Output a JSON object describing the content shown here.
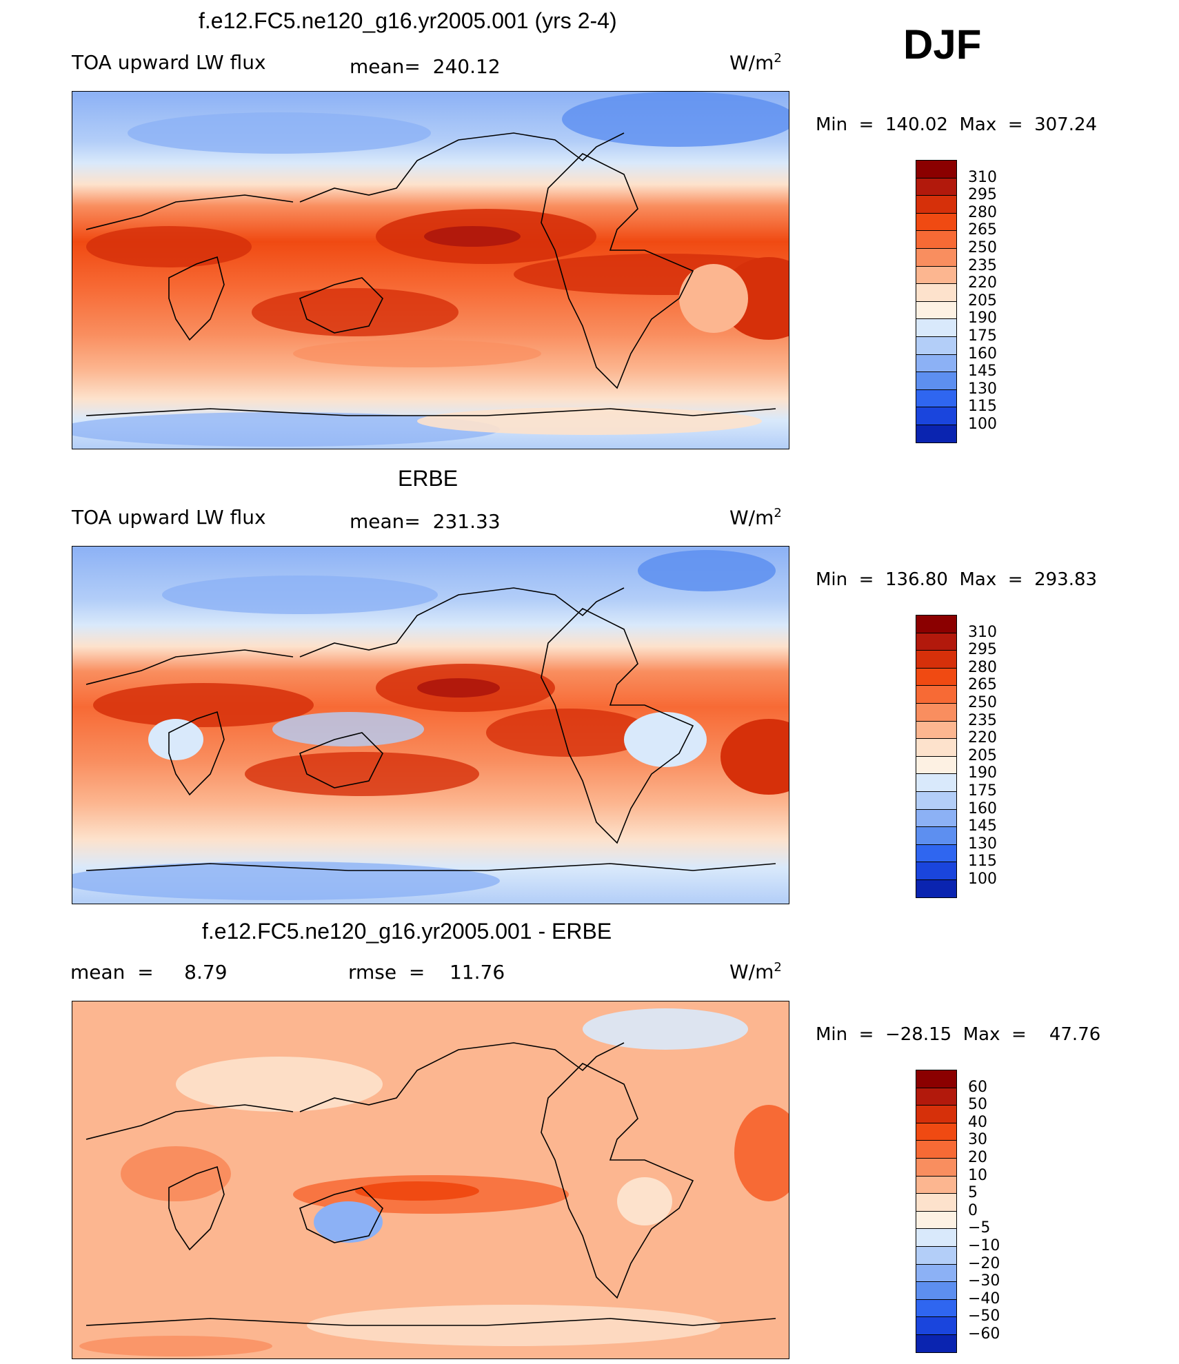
{
  "header": {
    "season": "DJF"
  },
  "chart_data": [
    {
      "type": "heatmap",
      "title": "f.e12.FC5.ne120_g16.yr2005.001 (yrs 2-4)",
      "variable": "TOA upward LW flux",
      "mean_label": "mean=  240.12",
      "units_label": "W/m",
      "units_exp": "2",
      "minmax_label": "Min  =  140.02  Max  =  307.24",
      "min": 140.02,
      "max": 307.24,
      "colorbar_levels": [
        "310",
        "295",
        "280",
        "265",
        "250",
        "235",
        "220",
        "205",
        "190",
        "175",
        "160",
        "145",
        "130",
        "115",
        "100"
      ],
      "colorbar_colors": [
        "#8b0000",
        "#b2190c",
        "#d6300a",
        "#f04a12",
        "#f76a35",
        "#f98e5f",
        "#fcb690",
        "#fde2cc",
        "#fdf1e3",
        "#d9e9fb",
        "#b3cef8",
        "#8cb1f5",
        "#5d8ff0",
        "#2f66f0",
        "#1a45dd",
        "#0a24b0"
      ]
    },
    {
      "type": "heatmap",
      "title": "ERBE",
      "variable": "TOA upward LW flux",
      "mean_label": "mean=  231.33",
      "units_label": "W/m",
      "units_exp": "2",
      "minmax_label": "Min  =  136.80  Max  =  293.83",
      "min": 136.8,
      "max": 293.83,
      "colorbar_levels": [
        "310",
        "295",
        "280",
        "265",
        "250",
        "235",
        "220",
        "205",
        "190",
        "175",
        "160",
        "145",
        "130",
        "115",
        "100"
      ],
      "colorbar_colors": [
        "#8b0000",
        "#b2190c",
        "#d6300a",
        "#f04a12",
        "#f76a35",
        "#f98e5f",
        "#fcb690",
        "#fde2cc",
        "#fdf1e3",
        "#d9e9fb",
        "#b3cef8",
        "#8cb1f5",
        "#5d8ff0",
        "#2f66f0",
        "#1a45dd",
        "#0a24b0"
      ]
    },
    {
      "type": "heatmap",
      "title": "f.e12.FC5.ne120_g16.yr2005.001 - ERBE",
      "mean_label": "mean  =     8.79",
      "rmse_label": "rmse  =    11.76",
      "units_label": "W/m",
      "units_exp": "2",
      "minmax_label": "Min  =  −28.15  Max  =    47.76",
      "min": -28.15,
      "max": 47.76,
      "colorbar_levels": [
        "60",
        "50",
        "40",
        "30",
        "20",
        "10",
        "5",
        "0",
        "−5",
        "−10",
        "−20",
        "−30",
        "−40",
        "−50",
        "−60"
      ],
      "colorbar_colors": [
        "#8b0000",
        "#b2190c",
        "#d6300a",
        "#f04a12",
        "#f76a35",
        "#f98e5f",
        "#fcb690",
        "#fde2cc",
        "#fdf1e3",
        "#d9e9fb",
        "#b3cef8",
        "#8cb1f5",
        "#5d8ff0",
        "#2f66f0",
        "#1a45dd",
        "#0a24b0"
      ]
    }
  ]
}
